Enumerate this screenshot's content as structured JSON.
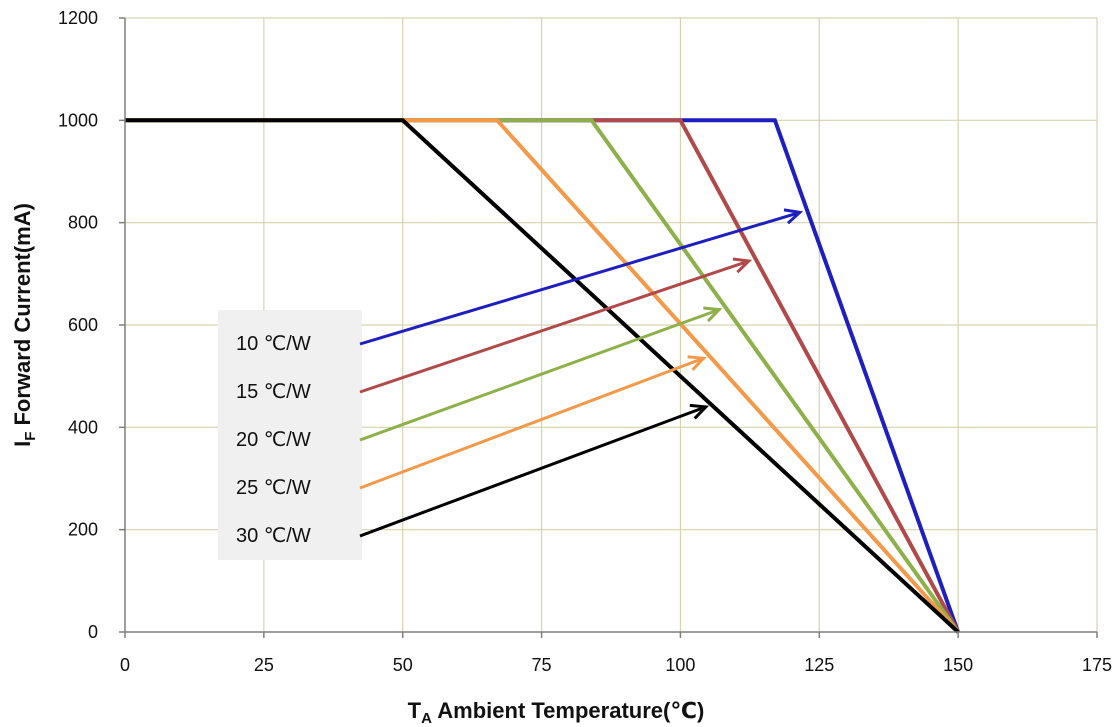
{
  "chart_data": {
    "type": "line",
    "title": "",
    "xlabel": {
      "main": "T",
      "sub": "A",
      "rest": " Ambient Temperature(℃)"
    },
    "ylabel": {
      "main": "I",
      "sub": "F",
      "rest": " Forward Current(mA)"
    },
    "xlim": [
      0,
      175
    ],
    "ylim": [
      0,
      1200
    ],
    "xticks": [
      0,
      25,
      50,
      75,
      100,
      125,
      150,
      175
    ],
    "yticks": [
      0,
      200,
      400,
      600,
      800,
      1000,
      1200
    ],
    "grid": true,
    "legend_position": "left-center",
    "series": [
      {
        "name": "10 ℃/W",
        "color": "#1f1fbf",
        "points": [
          [
            0,
            1000
          ],
          [
            117,
            1000
          ],
          [
            150,
            0
          ]
        ]
      },
      {
        "name": "15 ℃/W",
        "color": "#b04a4a",
        "points": [
          [
            0,
            1000
          ],
          [
            100,
            1000
          ],
          [
            150,
            0
          ]
        ]
      },
      {
        "name": "20 ℃/W",
        "color": "#8db04a",
        "points": [
          [
            0,
            1000
          ],
          [
            84,
            1000
          ],
          [
            150,
            0
          ]
        ]
      },
      {
        "name": "25 ℃/W",
        "color": "#f2994a",
        "points": [
          [
            0,
            1000
          ],
          [
            67,
            1000
          ],
          [
            150,
            0
          ]
        ]
      },
      {
        "name": "30 ℃/W",
        "color": "#000000",
        "points": [
          [
            0,
            1000
          ],
          [
            50,
            1000
          ],
          [
            150,
            0
          ]
        ]
      }
    ]
  }
}
